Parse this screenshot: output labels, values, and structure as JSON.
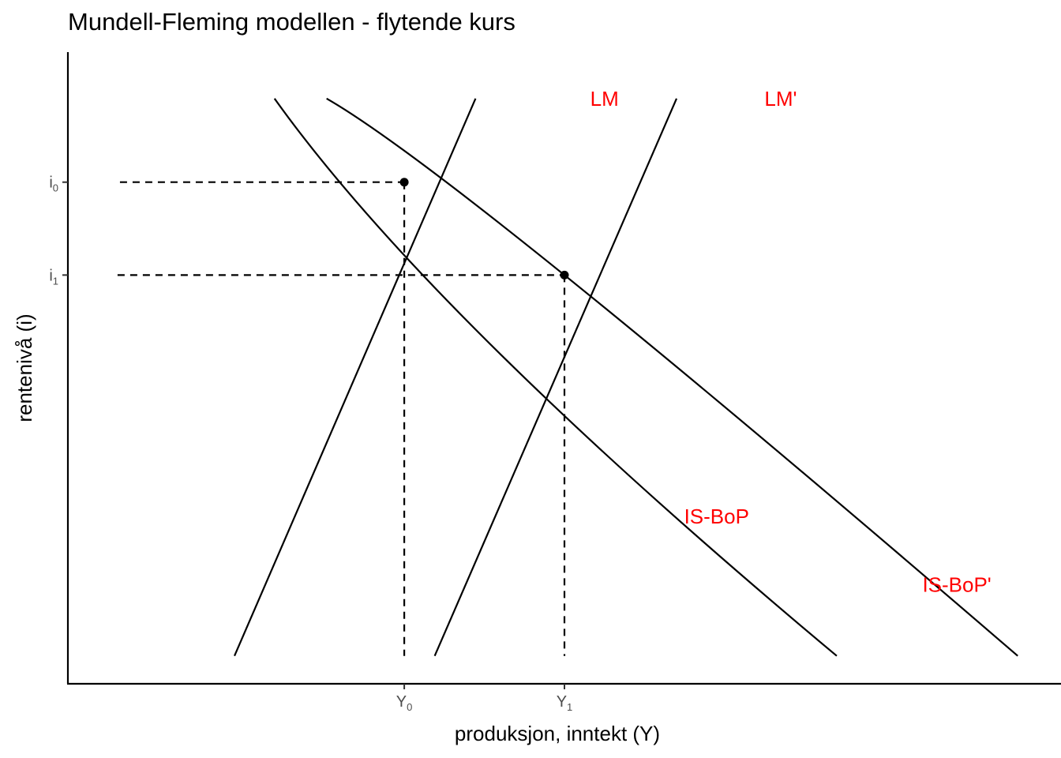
{
  "chart_data": {
    "type": "line",
    "title": "Mundell-Fleming modellen - flytende kurs",
    "xlabel": "produksjon, inntekt (Y)",
    "ylabel": "rentenivå (i)",
    "label_color": "#ff0000",
    "x_ticks": [
      {
        "base": "Y",
        "sub": "0",
        "value": 4.2
      },
      {
        "base": "Y",
        "sub": "1",
        "value": 6.2
      }
    ],
    "y_ticks": [
      {
        "base": "i",
        "sub": "0",
        "value": 7.5
      },
      {
        "base": "i",
        "sub": "1",
        "value": 6.0
      }
    ],
    "lines": [
      {
        "label": "LM",
        "shape": "linear",
        "x": [
          2.08,
          5.09
        ],
        "y": [
          -0.15,
          8.85
        ],
        "label_at": [
          6.7,
          8.85
        ]
      },
      {
        "label": "LM'",
        "shape": "linear",
        "x": [
          4.58,
          7.6
        ],
        "y": [
          -0.15,
          8.85
        ],
        "label_at": [
          8.9,
          8.85
        ]
      },
      {
        "label": "IS-BoP",
        "shape": "curve",
        "x": [
          2.58,
          5.3,
          9.6
        ],
        "y": [
          8.85,
          4.85,
          -0.15
        ],
        "label_at": [
          8.1,
          2.1
        ]
      },
      {
        "label": "IS-BoP'",
        "shape": "curve",
        "x": [
          3.23,
          6.2,
          11.86
        ],
        "y": [
          8.85,
          6.0,
          -0.15
        ],
        "label_at": [
          11.1,
          1.0
        ]
      }
    ],
    "equilibria": [
      {
        "x": 4.2,
        "y": 7.5
      },
      {
        "x": 6.2,
        "y": 6.0
      }
    ],
    "guides": [
      {
        "from": [
          0.65,
          7.5
        ],
        "to": [
          4.2,
          7.5
        ]
      },
      {
        "from": [
          0.62,
          6.0
        ],
        "to": [
          6.2,
          6.0
        ]
      },
      {
        "from": [
          4.2,
          7.5
        ],
        "to": [
          4.2,
          -0.15
        ]
      },
      {
        "from": [
          6.2,
          6.0
        ],
        "to": [
          6.2,
          -0.15
        ]
      }
    ],
    "xlim": [
      0,
      12.4
    ],
    "ylim": [
      -0.6,
      9.6
    ],
    "grid": false,
    "legend": "none"
  }
}
